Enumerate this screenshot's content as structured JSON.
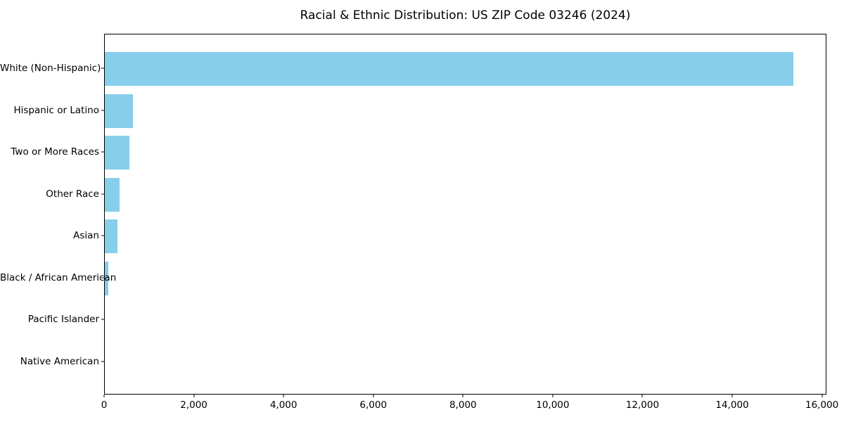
{
  "chart_data": {
    "type": "bar",
    "orientation": "horizontal",
    "title": "Racial & Ethnic Distribution: US ZIP Code 03246 (2024)",
    "categories": [
      "White (Non-Hispanic)",
      "Hispanic or Latino",
      "Two or More Races",
      "Other Race",
      "Asian",
      "Black / African American",
      "Pacific Islander",
      "Native American"
    ],
    "values": [
      15350,
      630,
      545,
      330,
      280,
      70,
      0,
      0
    ],
    "bar_color": "#87CEEB",
    "background_color": "#ffffff",
    "xlabel": "",
    "ylabel": "",
    "xlim": [
      0,
      16100
    ],
    "x_ticks": [
      0,
      2000,
      4000,
      6000,
      8000,
      10000,
      12000,
      14000,
      16000
    ],
    "x_tick_labels": [
      "0",
      "2,000",
      "4,000",
      "6,000",
      "8,000",
      "10,000",
      "12,000",
      "14,000",
      "16,000"
    ],
    "grid": false,
    "legend": "none",
    "sort_order": "descending",
    "plot_border": "#000000"
  }
}
